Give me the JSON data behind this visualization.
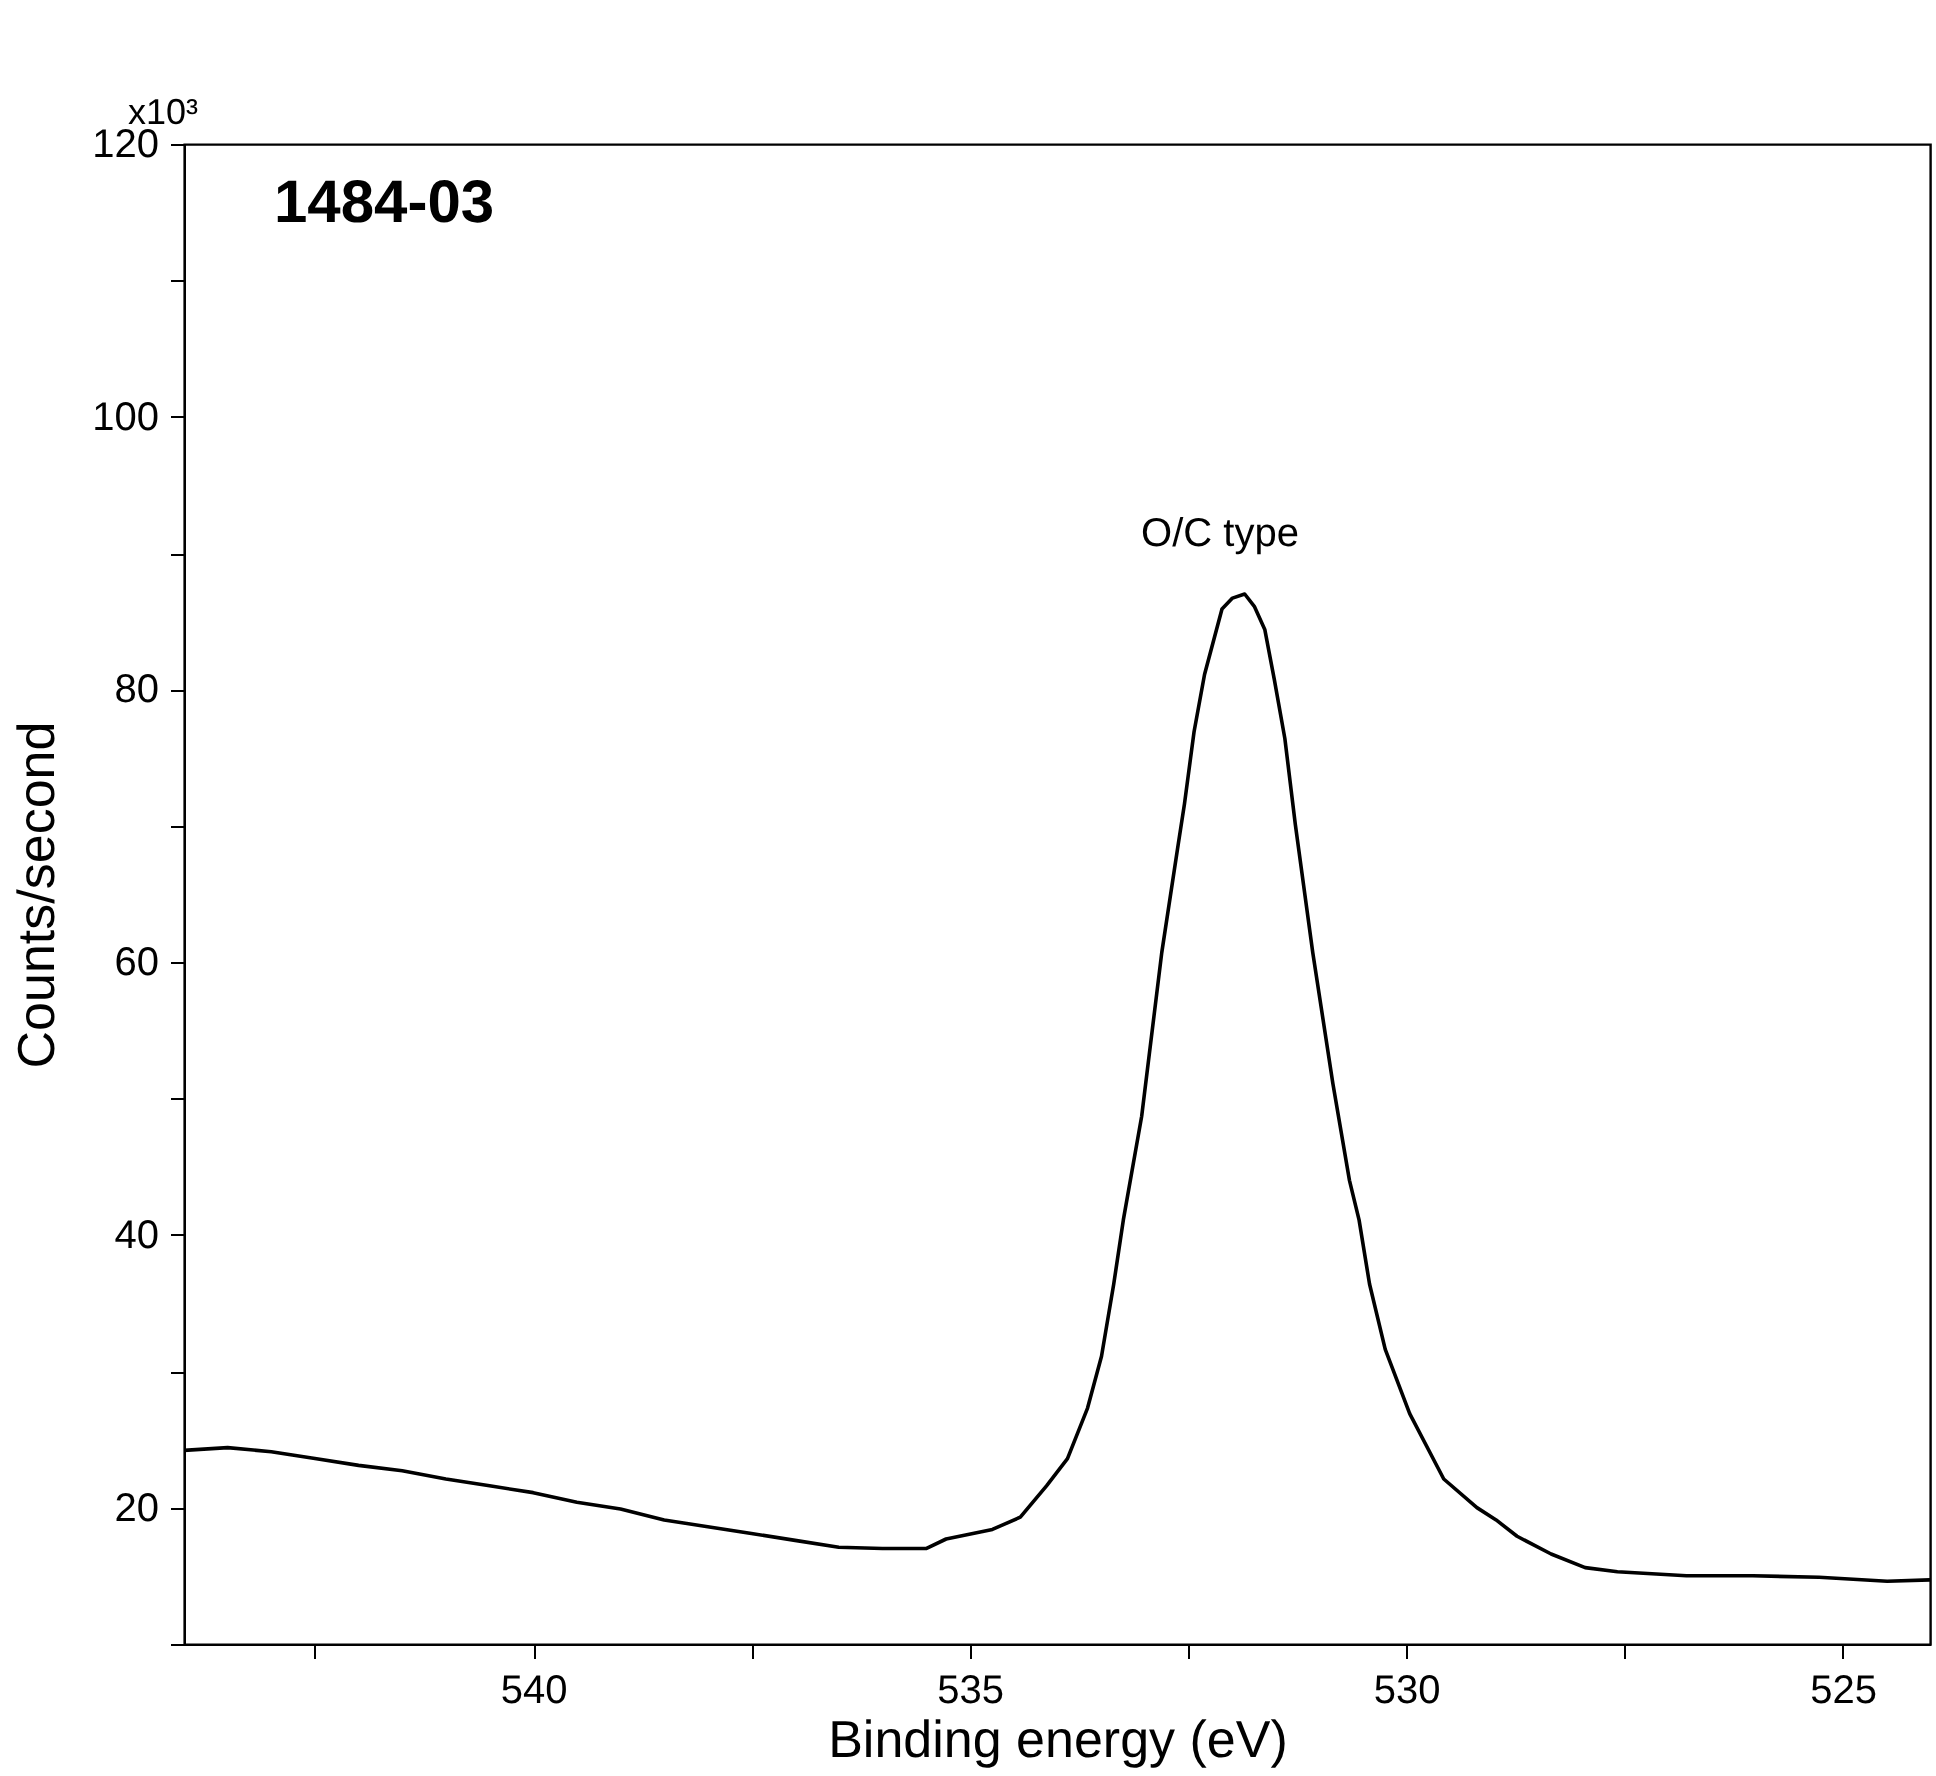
{
  "chart_data": {
    "type": "line",
    "xlabel": "Binding energy (eV)",
    "ylabel": "Counts/second",
    "annotations": [
      "1484-03",
      "x10³",
      "O/C type"
    ],
    "xlim": [
      544,
      524
    ],
    "ylim": [
      10,
      120
    ],
    "xticks": [
      {
        "value": 542.5,
        "label": null
      },
      540,
      {
        "value": 537.5,
        "label": null
      },
      535,
      {
        "value": 532.5,
        "label": null
      },
      530,
      {
        "value": 527.5,
        "label": null
      },
      525
    ],
    "yticks": [
      {
        "value": 10,
        "label": null
      },
      20,
      {
        "value": 30,
        "label": null
      },
      40,
      {
        "value": 50,
        "label": null
      },
      60,
      {
        "value": 70,
        "label": null
      },
      80,
      {
        "value": 90,
        "label": null
      },
      100,
      {
        "value": 110,
        "label": null
      },
      120
    ],
    "grid": false,
    "marker": "none",
    "line_style": "solid",
    "series": [
      {
        "color": "#000000",
        "x": [
          544,
          543.5,
          543,
          542.5,
          542,
          541.5,
          541,
          540.5,
          540,
          539.5,
          539,
          538.5,
          538,
          537.5,
          537,
          536.5,
          536,
          535.5,
          535.27,
          534.74,
          534.42,
          534.12,
          533.88,
          533.65,
          533.49,
          533.35,
          533.24,
          533.03,
          532.8,
          532.61,
          532.54,
          532.43,
          532.31,
          532.11,
          531.99,
          531.85,
          531.74,
          531.62,
          531.51,
          531.39,
          531.27,
          531.07,
          530.84,
          530.65,
          530.54,
          530.42,
          530.24,
          529.96,
          529.57,
          529.19,
          528.97,
          528.73,
          528.34,
          527.95,
          527.58,
          526.79,
          526.03,
          525.27,
          524.49,
          524
        ],
        "values": [
          24.2,
          24.4,
          24.1,
          23.6,
          23.1,
          22.7,
          22.1,
          21.6,
          21.1,
          20.4,
          19.9,
          19.1,
          18.6,
          18.1,
          17.6,
          17.1,
          17.0,
          17.0,
          17.7,
          18.4,
          19.3,
          21.6,
          23.6,
          27.3,
          31.1,
          36.4,
          41.1,
          48.7,
          60.7,
          68.7,
          71.6,
          76.9,
          81.1,
          85.9,
          86.7,
          87.0,
          86.1,
          84.4,
          80.7,
          76.4,
          70.1,
          60.7,
          51.1,
          44.0,
          41.1,
          36.4,
          31.6,
          26.9,
          22.1,
          20.0,
          19.1,
          17.9,
          16.6,
          15.6,
          15.3,
          15.0,
          15.0,
          14.9,
          14.6,
          14.7
        ]
      }
    ]
  }
}
